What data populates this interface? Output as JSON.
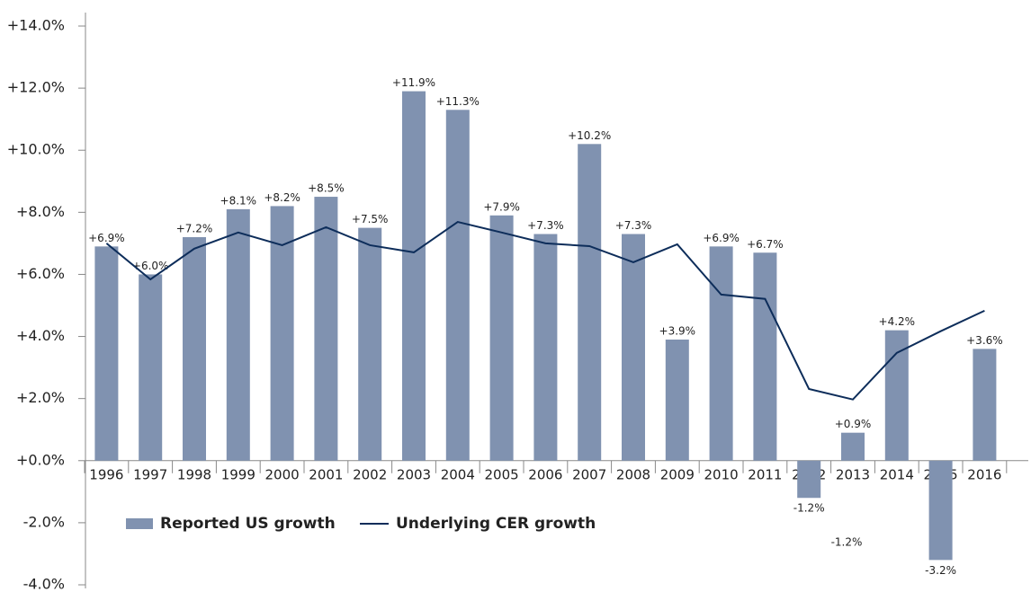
{
  "chart_data": {
    "type": "bar",
    "categories": [
      "1996",
      "1997",
      "1998",
      "1999",
      "2000",
      "2001",
      "2002",
      "2003",
      "2004",
      "2005",
      "2006",
      "2007",
      "2008",
      "2009",
      "2010",
      "2011",
      "2012",
      "2013",
      "2014",
      "2015",
      "2016"
    ],
    "series": [
      {
        "name": "Reported US growth",
        "type": "bar",
        "color": "#8092b0",
        "values": [
          6.9,
          6.0,
          7.2,
          8.1,
          8.2,
          8.5,
          7.5,
          11.9,
          11.3,
          7.9,
          7.3,
          10.2,
          7.3,
          3.9,
          6.9,
          6.7,
          -1.2,
          0.9,
          4.2,
          -3.2,
          3.6
        ],
        "value_labels": [
          "+6.9%",
          "+6.0%",
          "+7.2%",
          "+8.1%",
          "+8.2%",
          "+8.5%",
          "+7.5%",
          "+11.9%",
          "+11.3%",
          "+7.9%",
          "+7.3%",
          "+10.2%",
          "+7.3%",
          "+3.9%",
          "+6.9%",
          "+6.7%",
          "-1.2%",
          "+0.9%",
          "+4.2%",
          "-3.2%",
          "+3.6%"
        ]
      },
      {
        "name": "Underlying CER growth",
        "type": "line",
        "color": "#0d2d5a",
        "values": [
          7.0,
          5.84,
          6.83,
          7.35,
          6.94,
          7.52,
          6.94,
          6.71,
          7.69,
          7.35,
          7.0,
          6.91,
          6.39,
          6.97,
          5.35,
          5.21,
          2.31,
          1.97,
          3.47,
          4.17,
          4.83
        ]
      }
    ],
    "annotations": [
      "-1.2%"
    ],
    "ylim": [
      -4,
      14
    ],
    "yticks": [
      {
        "value": -4,
        "label": "-4.0%"
      },
      {
        "value": -2,
        "label": "-2.0%"
      },
      {
        "value": 0,
        "label": "+0.0%"
      },
      {
        "value": 2,
        "label": "+2.0%"
      },
      {
        "value": 4,
        "label": "+4.0%"
      },
      {
        "value": 6,
        "label": "+6.0%"
      },
      {
        "value": 8,
        "label": "+8.0%"
      },
      {
        "value": 10,
        "label": "+10.0%"
      },
      {
        "value": 12,
        "label": "+12.0%"
      },
      {
        "value": 14,
        "label": "+14.0%"
      }
    ],
    "grid": false
  }
}
